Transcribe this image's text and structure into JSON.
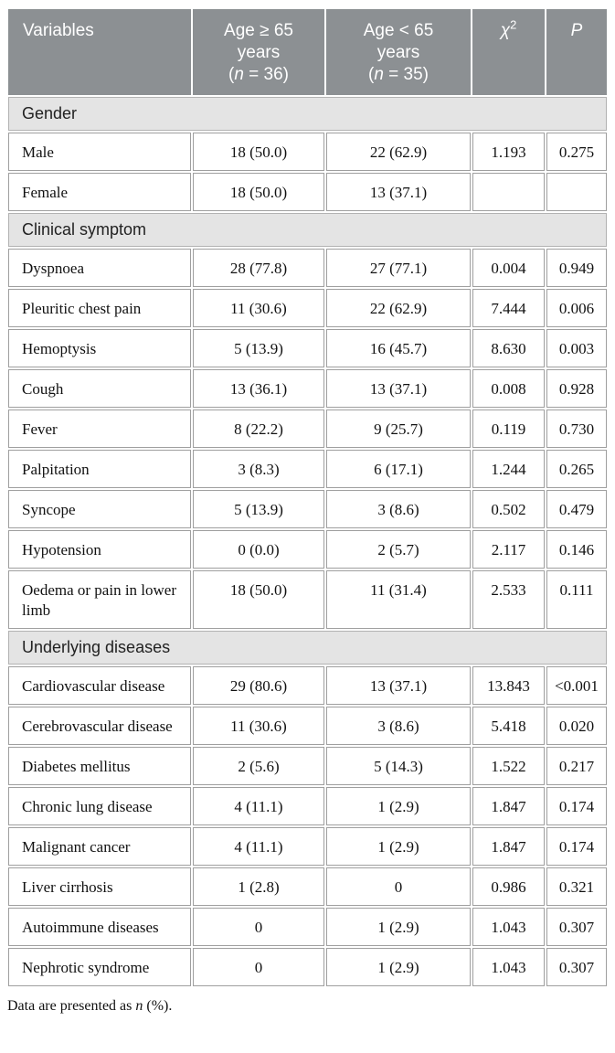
{
  "colors": {
    "header_bg": "#8c9093",
    "header_text": "#ffffff",
    "section_bg": "#e4e4e4",
    "cell_border": "#9f9f9f",
    "text": "#111111"
  },
  "table": {
    "columns": [
      {
        "name": "variables",
        "align": "left",
        "runs": [
          {
            "t": "Variables"
          }
        ]
      },
      {
        "name": "age-ge-65",
        "align": "center",
        "runs": [
          {
            "t": "Age ≥ 65"
          },
          {
            "br": true
          },
          {
            "t": "years"
          },
          {
            "br": true
          },
          {
            "t": "("
          },
          {
            "t": "n",
            "i": true
          },
          {
            "t": " = 36)"
          }
        ]
      },
      {
        "name": "age-lt-65",
        "align": "center",
        "runs": [
          {
            "t": "Age < 65"
          },
          {
            "br": true
          },
          {
            "t": "years"
          },
          {
            "br": true
          },
          {
            "t": "("
          },
          {
            "t": "n",
            "i": true
          },
          {
            "t": " = 35)"
          }
        ]
      },
      {
        "name": "chi-square",
        "align": "center",
        "runs": [
          {
            "t": "χ",
            "i": true
          },
          {
            "t": "2",
            "sup": true
          }
        ]
      },
      {
        "name": "p-value",
        "align": "center",
        "runs": [
          {
            "t": "P",
            "i": true
          }
        ]
      }
    ],
    "rows": [
      {
        "type": "section",
        "label": "Gender"
      },
      {
        "type": "data",
        "cells": [
          "Male",
          "18 (50.0)",
          "22 (62.9)",
          "1.193",
          "0.275"
        ]
      },
      {
        "type": "data",
        "cells": [
          "Female",
          "18 (50.0)",
          "13 (37.1)",
          "",
          ""
        ]
      },
      {
        "type": "section",
        "label": "Clinical symptom"
      },
      {
        "type": "data",
        "cells": [
          "Dyspnoea",
          "28 (77.8)",
          "27 (77.1)",
          "0.004",
          "0.949"
        ]
      },
      {
        "type": "data",
        "cells": [
          "Pleuritic chest pain",
          "11 (30.6)",
          "22 (62.9)",
          "7.444",
          "0.006"
        ]
      },
      {
        "type": "data",
        "cells": [
          "Hemoptysis",
          "5 (13.9)",
          "16 (45.7)",
          "8.630",
          "0.003"
        ]
      },
      {
        "type": "data",
        "cells": [
          "Cough",
          "13 (36.1)",
          "13 (37.1)",
          "0.008",
          "0.928"
        ]
      },
      {
        "type": "data",
        "cells": [
          "Fever",
          "8 (22.2)",
          "9 (25.7)",
          "0.119",
          "0.730"
        ]
      },
      {
        "type": "data",
        "cells": [
          "Palpitation",
          "3 (8.3)",
          "6 (17.1)",
          "1.244",
          "0.265"
        ]
      },
      {
        "type": "data",
        "cells": [
          "Syncope",
          "5 (13.9)",
          "3 (8.6)",
          "0.502",
          "0.479"
        ]
      },
      {
        "type": "data",
        "cells": [
          "Hypotension",
          "0 (0.0)",
          "2 (5.7)",
          "2.117",
          "0.146"
        ]
      },
      {
        "type": "data",
        "cells": [
          "Oedema or pain in lower limb",
          "18 (50.0)",
          "11 (31.4)",
          "2.533",
          "0.111"
        ]
      },
      {
        "type": "section",
        "label": "Underlying diseases"
      },
      {
        "type": "data",
        "cells": [
          "Cardiovascular disease",
          "29 (80.6)",
          "13 (37.1)",
          "13.843",
          "<0.001"
        ]
      },
      {
        "type": "data",
        "cells": [
          "Cerebrovascular disease",
          "11 (30.6)",
          "3 (8.6)",
          "5.418",
          "0.020"
        ]
      },
      {
        "type": "data",
        "cells": [
          "Diabetes mellitus",
          "2 (5.6)",
          "5 (14.3)",
          "1.522",
          "0.217"
        ]
      },
      {
        "type": "data",
        "cells": [
          "Chronic lung disease",
          "4 (11.1)",
          "1 (2.9)",
          "1.847",
          "0.174"
        ]
      },
      {
        "type": "data",
        "cells": [
          "Malignant cancer",
          "4 (11.1)",
          "1 (2.9)",
          "1.847",
          "0.174"
        ]
      },
      {
        "type": "data",
        "cells": [
          "Liver cirrhosis",
          "1 (2.8)",
          "0",
          "0.986",
          "0.321"
        ]
      },
      {
        "type": "data",
        "cells": [
          "Autoimmune diseases",
          "0",
          "1 (2.9)",
          "1.043",
          "0.307"
        ]
      },
      {
        "type": "data",
        "cells": [
          "Nephrotic syndrome",
          "0",
          "1 (2.9)",
          "1.043",
          "0.307"
        ]
      }
    ]
  },
  "footnote": {
    "runs": [
      {
        "t": "Data are presented as "
      },
      {
        "t": "n",
        "i": true
      },
      {
        "t": " (%)."
      }
    ]
  }
}
